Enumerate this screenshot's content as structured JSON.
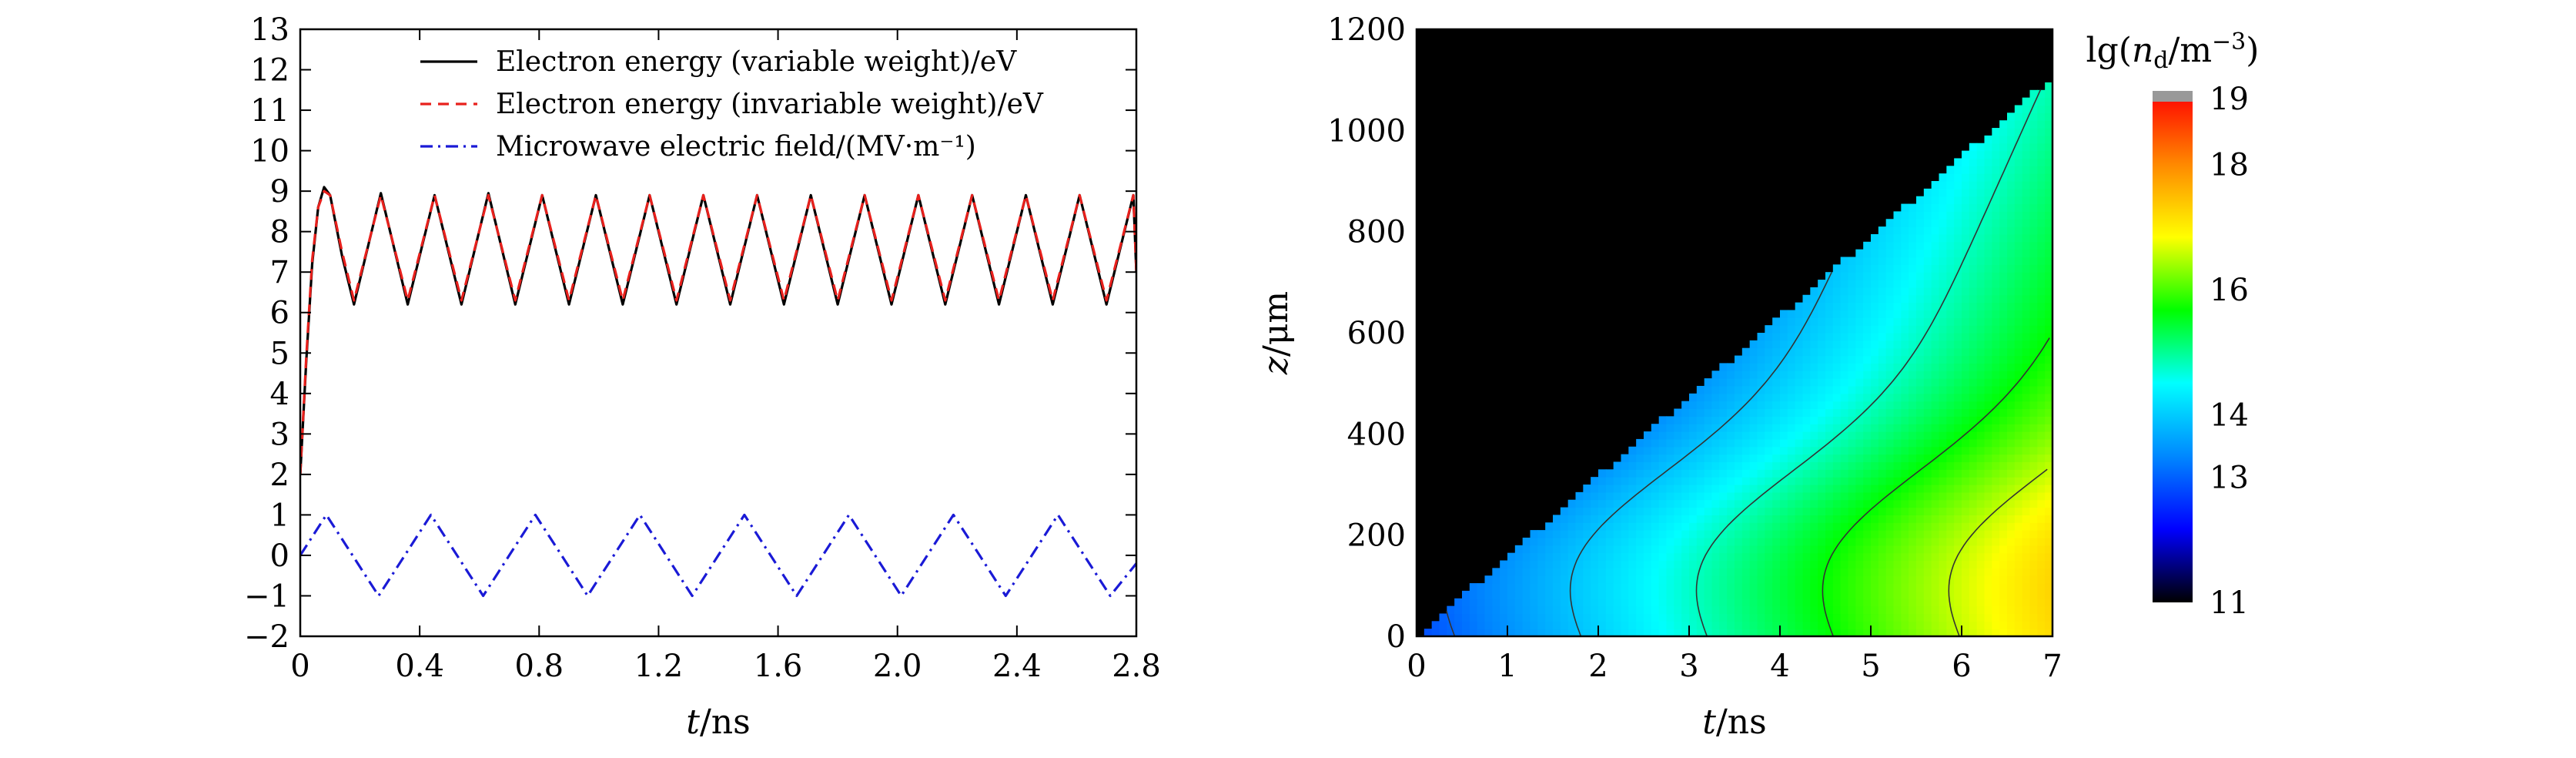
{
  "chart_data": [
    {
      "type": "line",
      "xlabel_var": "t",
      "xlabel_unit": "/ns",
      "xlim": [
        0,
        2.8
      ],
      "ylim": [
        -2,
        13
      ],
      "xticks": [
        "0",
        "0.4",
        "0.8",
        "1.2",
        "1.6",
        "2.0",
        "2.4",
        "2.8"
      ],
      "xtick_values": [
        0,
        0.4,
        0.8,
        1.2,
        1.6,
        2.0,
        2.4,
        2.8
      ],
      "yticks": [
        "−2",
        "−1",
        "0",
        "1",
        "2",
        "3",
        "4",
        "5",
        "6",
        "7",
        "8",
        "9",
        "10",
        "11",
        "12",
        "13"
      ],
      "ytick_values": [
        -2,
        -1,
        0,
        1,
        2,
        3,
        4,
        5,
        6,
        7,
        8,
        9,
        10,
        11,
        12,
        13
      ],
      "legend_position": "top-right",
      "series": [
        {
          "name": "Electron energy (variable weight)/eV",
          "color": "#000000",
          "style": "solid",
          "x": [
            0,
            0.02,
            0.04,
            0.06,
            0.08,
            0.1,
            0.14,
            0.18,
            0.27,
            0.36,
            0.45,
            0.54,
            0.63,
            0.72,
            0.81,
            0.9,
            0.99,
            1.08,
            1.17,
            1.26,
            1.35,
            1.44,
            1.53,
            1.62,
            1.71,
            1.8,
            1.89,
            1.98,
            2.07,
            2.16,
            2.25,
            2.34,
            2.43,
            2.52,
            2.61,
            2.7,
            2.79,
            2.8
          ],
          "y": [
            2.0,
            4.8,
            7.2,
            8.6,
            9.1,
            8.9,
            7.4,
            6.2,
            8.95,
            6.2,
            8.9,
            6.2,
            8.95,
            6.2,
            8.9,
            6.2,
            8.9,
            6.2,
            8.9,
            6.2,
            8.9,
            6.2,
            8.9,
            6.2,
            8.9,
            6.2,
            8.9,
            6.2,
            8.9,
            6.2,
            8.9,
            6.2,
            8.9,
            6.2,
            8.9,
            6.2,
            8.9,
            7.0
          ]
        },
        {
          "name": "Electron energy (invariable weight)/eV",
          "color": "#e8201c",
          "style": "dashed",
          "x": [
            0,
            0.02,
            0.04,
            0.06,
            0.08,
            0.1,
            0.14,
            0.18,
            0.27,
            0.36,
            0.45,
            0.54,
            0.63,
            0.72,
            0.81,
            0.9,
            0.99,
            1.08,
            1.17,
            1.26,
            1.35,
            1.44,
            1.53,
            1.62,
            1.71,
            1.8,
            1.89,
            1.98,
            2.07,
            2.16,
            2.25,
            2.34,
            2.43,
            2.52,
            2.61,
            2.7,
            2.79,
            2.8
          ],
          "y": [
            2.0,
            4.9,
            7.3,
            8.6,
            9.0,
            8.9,
            7.5,
            6.3,
            8.9,
            6.3,
            8.9,
            6.3,
            8.9,
            6.3,
            8.9,
            6.3,
            8.9,
            6.3,
            8.9,
            6.3,
            8.9,
            6.3,
            8.9,
            6.3,
            8.9,
            6.3,
            8.9,
            6.3,
            8.9,
            6.3,
            8.9,
            6.3,
            8.9,
            6.3,
            8.9,
            6.3,
            8.9,
            7.0
          ]
        },
        {
          "name": "Microwave electric field/(MV·m⁻¹)",
          "color": "#1a1ad6",
          "style": "dashdot",
          "x": [
            0,
            0.0875,
            0.175,
            0.2625,
            0.35,
            0.4375,
            0.525,
            0.6125,
            0.7,
            0.7875,
            0.875,
            0.9625,
            1.05,
            1.1375,
            1.225,
            1.3125,
            1.4,
            1.4875,
            1.575,
            1.6625,
            1.75,
            1.8375,
            1.925,
            2.0125,
            2.1,
            2.1875,
            2.275,
            2.3625,
            2.45,
            2.5375,
            2.625,
            2.7125,
            2.8
          ],
          "y": [
            0,
            1,
            0,
            -1,
            0,
            1,
            0,
            -1,
            0,
            1,
            0,
            -1,
            0,
            1,
            0,
            -1,
            0,
            1,
            0,
            -1,
            0,
            1,
            0,
            -1,
            0,
            1,
            0,
            -1,
            0,
            1,
            0,
            -1,
            -0.2
          ]
        }
      ]
    },
    {
      "type": "heatmap",
      "xlabel_var": "t",
      "xlabel_unit": "/ns",
      "ylabel_var": "z",
      "ylabel_unit": "/μm",
      "xlim": [
        0,
        7
      ],
      "ylim": [
        0,
        1200
      ],
      "xticks": [
        "0",
        "1",
        "2",
        "3",
        "4",
        "5",
        "6",
        "7"
      ],
      "xtick_values": [
        0,
        1,
        2,
        3,
        4,
        5,
        6,
        7
      ],
      "yticks": [
        "0",
        "200",
        "400",
        "600",
        "800",
        "1000",
        "1200"
      ],
      "ytick_values": [
        0,
        200,
        400,
        600,
        800,
        1000,
        1200
      ],
      "front_slope_um_per_ns": 158,
      "colorbar": {
        "title_lg": "lg(",
        "title_var": "n",
        "title_sub": "d",
        "title_unit": "/m",
        "title_exp": "−3",
        "title_close": ")",
        "ticks": [
          "11",
          "13",
          "14",
          "16",
          "18",
          "19"
        ],
        "tick_values": [
          11,
          13,
          14,
          16,
          18,
          19
        ],
        "range": [
          11,
          19
        ],
        "colors": [
          "#000000",
          "#0000ff",
          "#0088ff",
          "#00ffff",
          "#00ff00",
          "#ffff00",
          "#ff8800",
          "#ff0000",
          "#999999"
        ]
      },
      "contour_levels": [
        12,
        13,
        14,
        15,
        16,
        17,
        18
      ]
    }
  ]
}
